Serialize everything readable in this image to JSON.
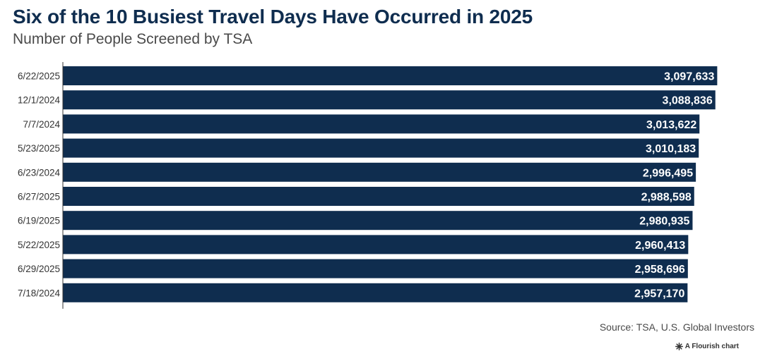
{
  "title": "Six of the 10 Busiest Travel Days Have Occurred in 2025",
  "subtitle": "Number of People Screened by TSA",
  "source": "Source: TSA, U.S. Global Investors",
  "credit": {
    "icon": "flourish-icon",
    "label": "A Flourish chart"
  },
  "colors": {
    "bar": "#0f2d4f",
    "bar_label": "#ffffff",
    "axis": "#333333",
    "tick_label": "#333333"
  },
  "chart_data": {
    "type": "bar",
    "orientation": "horizontal",
    "categories": [
      "6/22/2025",
      "12/1/2024",
      "7/7/2024",
      "5/23/2025",
      "6/23/2024",
      "6/27/2025",
      "6/19/2025",
      "5/22/2025",
      "6/29/2025",
      "7/18/2024"
    ],
    "values": [
      3097633,
      3088836,
      3013622,
      3010183,
      2996495,
      2988598,
      2980935,
      2960413,
      2958696,
      2957170
    ],
    "value_labels": [
      "3,097,633",
      "3,088,836",
      "3,013,622",
      "3,010,183",
      "2,996,495",
      "2,988,598",
      "2,980,935",
      "2,960,413",
      "2,958,696",
      "2,957,170"
    ],
    "xlim": [
      0,
      3180000
    ],
    "grid": false,
    "legend": "none"
  }
}
